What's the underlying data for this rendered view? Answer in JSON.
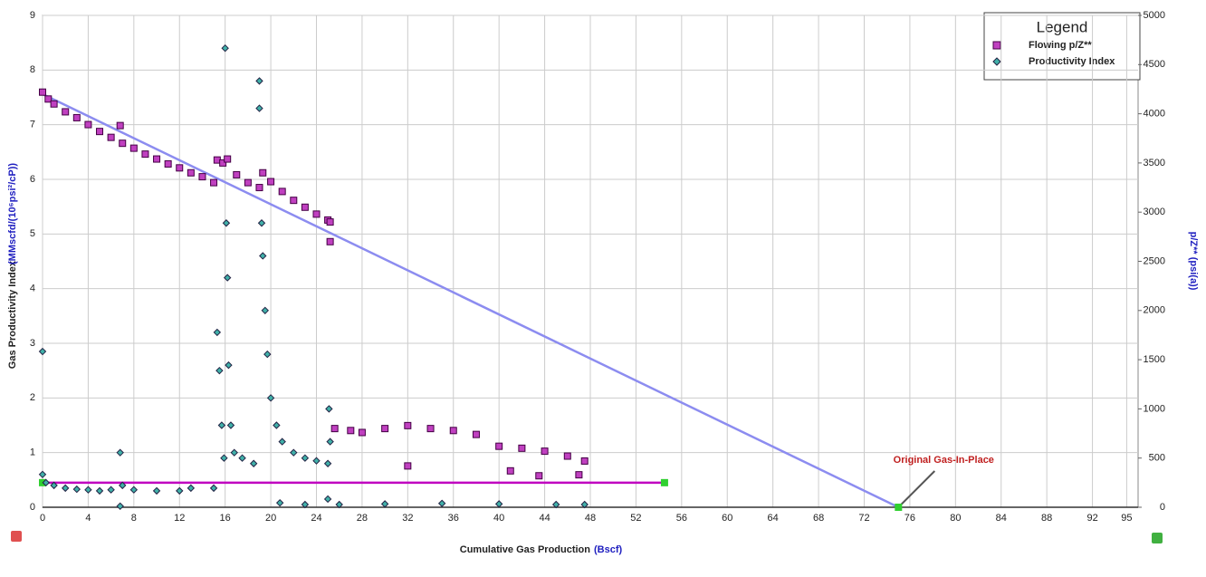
{
  "chart_data": {
    "type": "scatter",
    "x_label": "Cumulative Gas Production",
    "x_label_unit": "(Bscf)",
    "y_label": "Gas Productivity Index",
    "y_label_unit": "(MMscfd/(10⁶psi²/cP))",
    "y2_label": "p/Z** (psi(a))",
    "legend_title": "Legend",
    "legend_position": "upper right",
    "xlim": [
      0,
      96
    ],
    "xticks": [
      0,
      4,
      8,
      12,
      16,
      20,
      24,
      28,
      32,
      36,
      40,
      44,
      48,
      52,
      56,
      60,
      64,
      68,
      72,
      76,
      80,
      84,
      88,
      92,
      95
    ],
    "ylim": [
      0,
      9
    ],
    "yticks": [
      0,
      1,
      2,
      3,
      4,
      5,
      6,
      7,
      8,
      9
    ],
    "y2lim": [
      0,
      5000
    ],
    "y2ticks": [
      0,
      500,
      1000,
      1500,
      2000,
      2500,
      3000,
      3500,
      4000,
      4500,
      5000
    ],
    "grid": true,
    "series": [
      {
        "name": "Flowing p/Z**",
        "color": "#c040c0",
        "marker": "square",
        "axis": "y2",
        "x": [
          0,
          0.5,
          1,
          2,
          3,
          4,
          5,
          6,
          7,
          8,
          9,
          10,
          11,
          12,
          13,
          14,
          15,
          15.3,
          15.8,
          16.2,
          17,
          18,
          19,
          19.3,
          20,
          21,
          22,
          23,
          24,
          25,
          25.2,
          25.6,
          27,
          28,
          30,
          32,
          34,
          36,
          38,
          40,
          42,
          44,
          46,
          47.5,
          32,
          41,
          43.5,
          47,
          25.2,
          6.8
        ],
        "values": [
          4220,
          4150,
          4100,
          4020,
          3960,
          3890,
          3820,
          3760,
          3700,
          3650,
          3590,
          3540,
          3490,
          3450,
          3400,
          3360,
          3300,
          3530,
          3500,
          3540,
          3380,
          3300,
          3250,
          3400,
          3310,
          3210,
          3120,
          3050,
          2980,
          2920,
          2900,
          800,
          780,
          760,
          800,
          830,
          800,
          780,
          740,
          620,
          600,
          570,
          520,
          470,
          420,
          370,
          320,
          330,
          2700,
          3880
        ]
      },
      {
        "name": "Productivity Index",
        "color": "#40b0a8",
        "marker": "diamond",
        "axis": "y",
        "x": [
          0,
          0,
          0.3,
          1,
          2,
          3,
          4,
          5,
          6,
          6.8,
          6.8,
          7,
          8,
          10,
          12,
          13,
          15,
          15.3,
          15.5,
          15.7,
          15.9,
          16,
          16.1,
          16.2,
          16.3,
          16.5,
          16.8,
          17.5,
          18.5,
          19,
          19,
          19.2,
          19.3,
          19.5,
          19.7,
          20,
          20.5,
          21,
          22,
          23,
          24,
          25,
          25.1,
          25.2,
          25,
          20.8,
          23,
          26,
          30,
          35,
          40,
          45,
          47.5
        ],
        "values": [
          0.6,
          2.85,
          0.45,
          0.4,
          0.35,
          0.33,
          0.32,
          0.3,
          0.32,
          1.0,
          0.02,
          0.4,
          0.32,
          0.3,
          0.3,
          0.35,
          0.35,
          3.2,
          2.5,
          1.5,
          0.9,
          8.4,
          5.2,
          4.2,
          2.6,
          1.5,
          1.0,
          0.9,
          0.8,
          7.8,
          7.3,
          5.2,
          4.6,
          3.6,
          2.8,
          2.0,
          1.5,
          1.2,
          1.0,
          0.9,
          0.85,
          0.8,
          1.8,
          1.2,
          0.15,
          0.08,
          0.05,
          0.05,
          0.06,
          0.07,
          0.06,
          0.05,
          0.05
        ]
      }
    ],
    "lines": [
      {
        "color": "#8c8cf0",
        "axis": "y2",
        "x": [
          0,
          75
        ],
        "values": [
          4200,
          0
        ]
      },
      {
        "color": "#c000c0",
        "axis": "y",
        "x": [
          0,
          54.5
        ],
        "values": [
          0.45,
          0.45
        ],
        "end_color": "#30d030"
      }
    ],
    "annotation": {
      "text": "Original Gas-In-Place",
      "x": 75,
      "y": 0
    }
  }
}
